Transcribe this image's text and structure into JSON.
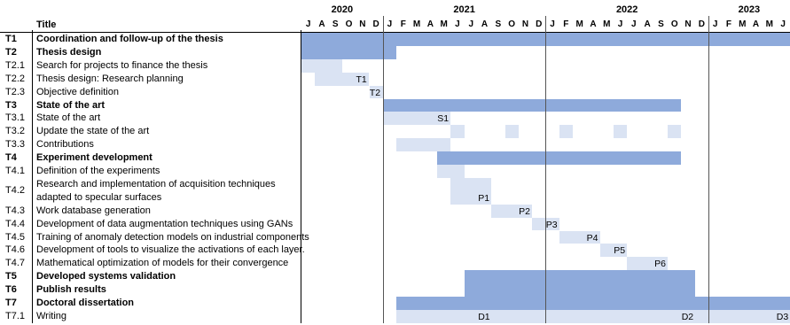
{
  "header": {
    "title_label": "Title"
  },
  "years": [
    "2020",
    "2021",
    "2022",
    "2023"
  ],
  "months": [
    "J",
    "A",
    "S",
    "O",
    "N",
    "D",
    "J",
    "F",
    "M",
    "A",
    "M",
    "J",
    "J",
    "A",
    "S",
    "O",
    "N",
    "D",
    "J",
    "F",
    "M",
    "A",
    "M",
    "J",
    "J",
    "A",
    "S",
    "O",
    "N",
    "D",
    "J",
    "F",
    "M",
    "A",
    "M",
    "J"
  ],
  "tasks": [
    {
      "id": "T1",
      "title": "Coordination and follow-up of the thesis",
      "bold": true,
      "bars": [
        {
          "from": 0,
          "to": 36,
          "level": "main"
        }
      ]
    },
    {
      "id": "T2",
      "title": "Thesis design",
      "bold": true,
      "bars": [
        {
          "from": 0,
          "to": 7,
          "level": "main"
        }
      ]
    },
    {
      "id": "T2.1",
      "title": "Search for projects to finance the thesis",
      "bold": false,
      "bars": [
        {
          "from": 0,
          "to": 3,
          "level": "sub"
        }
      ]
    },
    {
      "id": "T2.2",
      "title": "Thesis design: Research planning",
      "bold": false,
      "bars": [
        {
          "from": 1,
          "to": 5,
          "level": "sub"
        }
      ],
      "milestone": {
        "label": "T1",
        "at": 5
      }
    },
    {
      "id": "T2.3",
      "title": "Objective definition",
      "bold": false,
      "bars": [
        {
          "from": 5,
          "to": 6,
          "level": "sub"
        }
      ],
      "milestone": {
        "label": "T2",
        "at": 6
      }
    },
    {
      "id": "T3",
      "title": "State of the art",
      "bold": true,
      "bars": [
        {
          "from": 6,
          "to": 28,
          "level": "main"
        }
      ]
    },
    {
      "id": "T3.1",
      "title": "State of the art",
      "bold": false,
      "bars": [
        {
          "from": 6,
          "to": 11,
          "level": "sub"
        }
      ],
      "milestone": {
        "label": "S1",
        "at": 11
      }
    },
    {
      "id": "T3.2",
      "title": "Update the state of the art",
      "bold": false,
      "bars": [
        {
          "from": 11,
          "to": 12,
          "level": "sub"
        },
        {
          "from": 15,
          "to": 16,
          "level": "sub"
        },
        {
          "from": 19,
          "to": 20,
          "level": "sub"
        },
        {
          "from": 23,
          "to": 24,
          "level": "sub"
        },
        {
          "from": 27,
          "to": 28,
          "level": "sub"
        }
      ]
    },
    {
      "id": "T3.3",
      "title": "Contributions",
      "bold": false,
      "bars": [
        {
          "from": 7,
          "to": 11,
          "level": "sub"
        }
      ]
    },
    {
      "id": "T4",
      "title": "Experiment development",
      "bold": true,
      "bars": [
        {
          "from": 10,
          "to": 28,
          "level": "main"
        }
      ]
    },
    {
      "id": "T4.1",
      "title": "Definition of the experiments",
      "bold": false,
      "bars": [
        {
          "from": 10,
          "to": 12,
          "level": "sub"
        }
      ]
    },
    {
      "id": "T4.2",
      "title": "Research and implementation of acquisition techniques",
      "title2": "adapted to specular surfaces",
      "bold": false,
      "tall": true,
      "bars": [
        {
          "from": 11,
          "to": 14,
          "level": "sub"
        }
      ],
      "milestone": {
        "label": "P1",
        "at": 14
      }
    },
    {
      "id": "T4.3",
      "title": "Work database generation",
      "bold": false,
      "bars": [
        {
          "from": 14,
          "to": 17,
          "level": "sub"
        }
      ],
      "milestone": {
        "label": "P2",
        "at": 17
      }
    },
    {
      "id": "T4.4",
      "title": "Development of data augmentation techniques using GANs",
      "bold": false,
      "bars": [
        {
          "from": 17,
          "to": 19,
          "level": "sub"
        }
      ],
      "milestone": {
        "label": "P3",
        "at": 19
      }
    },
    {
      "id": "T4.5",
      "title": "Training of anomaly detection models on industrial components",
      "bold": false,
      "bars": [
        {
          "from": 19,
          "to": 22,
          "level": "sub"
        }
      ],
      "milestone": {
        "label": "P4",
        "at": 22
      }
    },
    {
      "id": "T4.6",
      "title": "Development of tools to visualize the activations of each layer.",
      "bold": false,
      "bars": [
        {
          "from": 22,
          "to": 24,
          "level": "sub"
        }
      ],
      "milestone": {
        "label": "P5",
        "at": 24
      }
    },
    {
      "id": "T4.7",
      "title": "Mathematical optimization of models for their convergence",
      "bold": false,
      "bars": [
        {
          "from": 24,
          "to": 27,
          "level": "sub"
        }
      ],
      "milestone": {
        "label": "P6",
        "at": 27
      }
    },
    {
      "id": "T5",
      "title": "Developed systems validation",
      "bold": true,
      "bars": [
        {
          "from": 12,
          "to": 29,
          "level": "main"
        }
      ]
    },
    {
      "id": "T6",
      "title": "Publish results",
      "bold": true,
      "bars": [
        {
          "from": 12,
          "to": 29,
          "level": "main"
        }
      ]
    },
    {
      "id": "T7",
      "title": "Doctoral dissertation",
      "bold": true,
      "bars": [
        {
          "from": 7,
          "to": 36,
          "level": "main"
        }
      ]
    },
    {
      "id": "T7.1",
      "title": "Writing",
      "bold": false,
      "bars": [
        {
          "from": 7,
          "to": 36,
          "level": "sub"
        }
      ],
      "milestones": [
        {
          "label": "D1",
          "at": 14
        },
        {
          "label": "D2",
          "at": 29
        },
        {
          "label": "D3",
          "at": 36
        }
      ]
    }
  ],
  "colors": {
    "main": "#8eaadb",
    "sub": "#dae3f3"
  }
}
